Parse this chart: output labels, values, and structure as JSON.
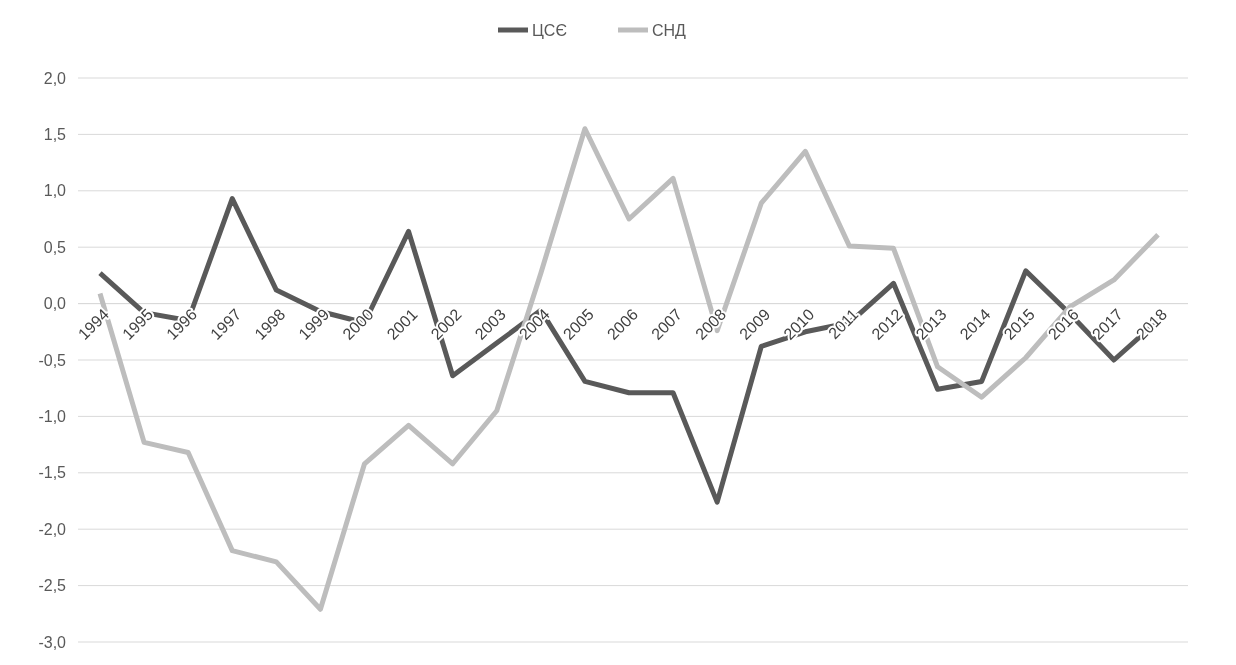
{
  "chart_data": {
    "type": "line",
    "categories": [
      "1994",
      "1995",
      "1996",
      "1997",
      "1998",
      "1999",
      "2000",
      "2001",
      "2002",
      "2003",
      "2004",
      "2005",
      "2006",
      "2007",
      "2008",
      "2009",
      "2010",
      "2011",
      "2012",
      "2013",
      "2014",
      "2015",
      "2016",
      "2017",
      "2018"
    ],
    "series": [
      {
        "name": "ЦСЄ",
        "color": "#595959",
        "values": [
          0.27,
          -0.08,
          -0.15,
          0.93,
          0.12,
          -0.07,
          -0.17,
          0.64,
          -0.64,
          -0.35,
          -0.06,
          -0.69,
          -0.79,
          -0.79,
          -1.76,
          -0.38,
          -0.25,
          -0.17,
          0.18,
          -0.76,
          -0.69,
          0.29,
          -0.09,
          -0.5,
          -0.15
        ]
      },
      {
        "name": "СНД",
        "color": "#bdbdbd",
        "values": [
          0.09,
          -1.23,
          -1.32,
          -2.19,
          -2.29,
          -2.71,
          -1.42,
          -1.08,
          -1.42,
          -0.95,
          0.27,
          1.55,
          0.75,
          1.11,
          -0.24,
          0.89,
          1.35,
          0.51,
          0.49,
          -0.56,
          -0.83,
          -0.48,
          -0.03,
          0.21,
          0.61
        ]
      }
    ],
    "ylim": [
      -3,
      2
    ],
    "yticks": [
      {
        "value": -3,
        "label": "-3,0"
      },
      {
        "value": -2.5,
        "label": "-2,5"
      },
      {
        "value": -2,
        "label": "-2,0"
      },
      {
        "value": -1.5,
        "label": "-1,5"
      },
      {
        "value": -1,
        "label": "-1,0"
      },
      {
        "value": -0.5,
        "label": "-0,5"
      },
      {
        "value": 0,
        "label": "0,0"
      },
      {
        "value": 0.5,
        "label": "0,5"
      },
      {
        "value": 1,
        "label": "1,0"
      },
      {
        "value": 1.5,
        "label": "1,5"
      },
      {
        "value": 2,
        "label": "2,0"
      }
    ],
    "grid": "y",
    "legend": "top",
    "marker": "none",
    "line_style": "solid"
  }
}
